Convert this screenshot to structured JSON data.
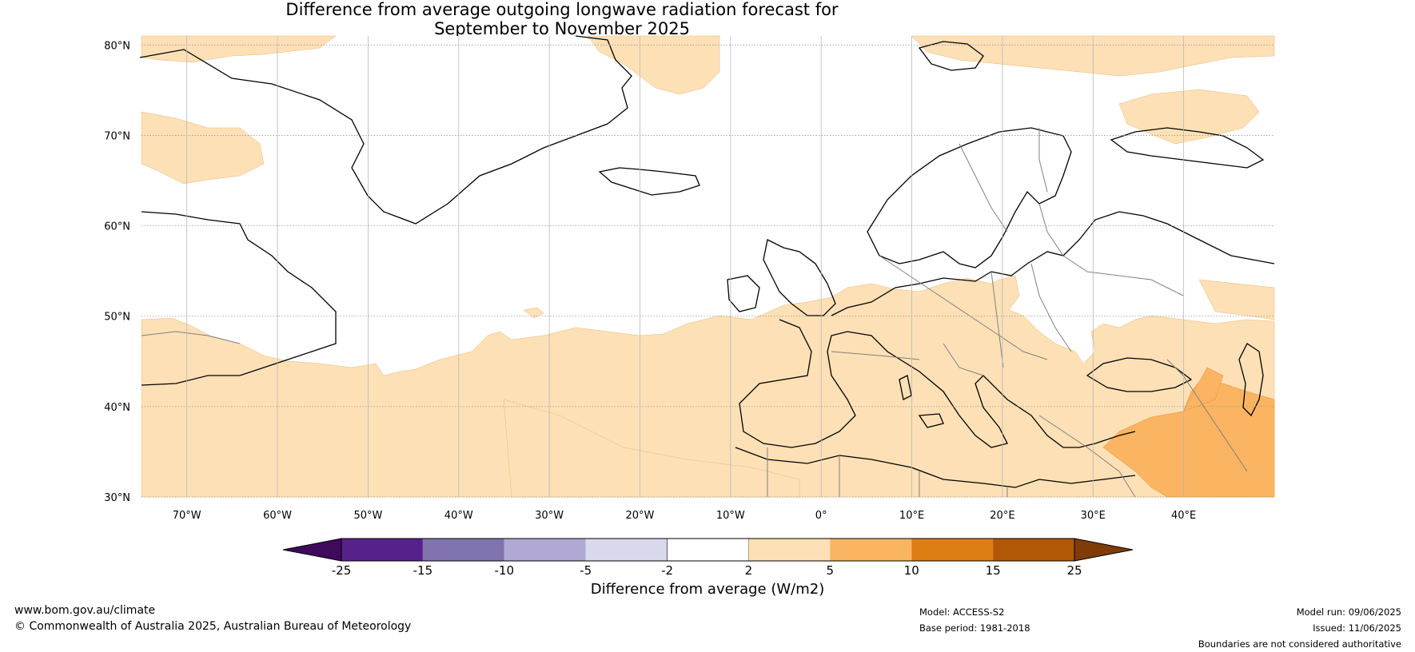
{
  "title": {
    "line1": "Difference from average outgoing longwave radiation forecast for",
    "line2": "September to November 2025"
  },
  "map": {
    "lat_labels": [
      "80°N",
      "70°N",
      "60°N",
      "50°N",
      "40°N",
      "30°N"
    ],
    "lon_labels": [
      "70°W",
      "60°W",
      "50°W",
      "40°W",
      "30°W",
      "20°W",
      "10°W",
      "0°",
      "10°E",
      "20°E",
      "30°E",
      "40°E"
    ],
    "lat_range": [
      30,
      81
    ],
    "lon_range": [
      -75,
      50
    ],
    "colors": {
      "light_positive": "#fde0b6",
      "medium_positive": "#fbb461",
      "coast": "#000000",
      "border": "#808080",
      "grid": "#9a9a9a"
    }
  },
  "colorbar": {
    "label": "Difference from average (W/m2)",
    "ticks": [
      "-25",
      "-15",
      "-10",
      "-5",
      "-2",
      "2",
      "5",
      "10",
      "15",
      "25"
    ],
    "colors": [
      "#3f0a5c",
      "#57218b",
      "#8073ad",
      "#b1a8d4",
      "#d9d9ec",
      "#ffffff",
      "#fde0b6",
      "#fbb461",
      "#df7d15",
      "#b15806",
      "#7f3b08"
    ]
  },
  "footer": {
    "website": "www.bom.gov.au/climate",
    "copyright": "© Commonwealth of Australia 2025, Australian Bureau of Meteorology",
    "model": "Model: ACCESS-S2",
    "base_period": "Base period: 1981-2018",
    "model_run": "Model run: 09/06/2025",
    "issued": "Issued: 11/06/2025",
    "disclaimer": "Boundaries are not considered authoritative"
  }
}
